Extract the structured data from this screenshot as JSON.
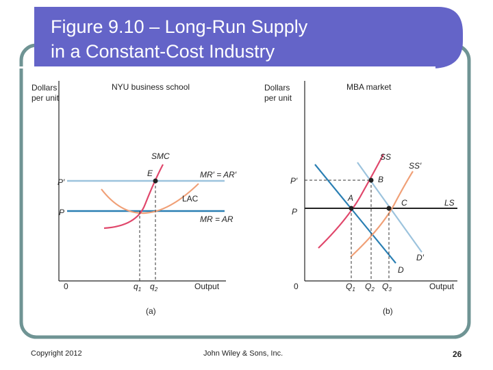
{
  "slide": {
    "title_line1": "Figure 9.10 – Long-Run Supply",
    "title_line2": "in a Constant-Cost Industry",
    "footer_left": "Copyright 2012",
    "footer_center": "John Wiley & Sons, Inc.",
    "page_number": "26",
    "colors": {
      "header": "#6464c8",
      "frame": "#6f9494"
    }
  },
  "panel_a": {
    "y_label_1": "Dollars",
    "y_label_2": "per unit",
    "header": "NYU business school",
    "caption": "(a)",
    "origin": "0",
    "x_label": "Output",
    "price_high": "P′",
    "price_low": "P",
    "smc": "SMC",
    "point_e": "E",
    "lac": "LAC",
    "mr_high": "MR′ = AR′",
    "mr_low": "MR = AR",
    "q1": "q",
    "q1_sub": "1",
    "q2": "q",
    "q2_sub": "2"
  },
  "panel_b": {
    "y_label_1": "Dollars",
    "y_label_2": "per unit",
    "header": "MBA market",
    "caption": "(b)",
    "origin": "0",
    "x_label": "Output",
    "price_high": "P′",
    "price_low": "P",
    "ss": "SS",
    "ss_prime": "SS′",
    "ls": "LS",
    "point_a": "A",
    "point_b": "B",
    "point_c": "C",
    "d": "D",
    "d_prime": "D′",
    "q1": "Q",
    "q1_sub": "1",
    "q2": "Q",
    "q2_sub": "2",
    "q3": "Q",
    "q3_sub": "3"
  }
}
